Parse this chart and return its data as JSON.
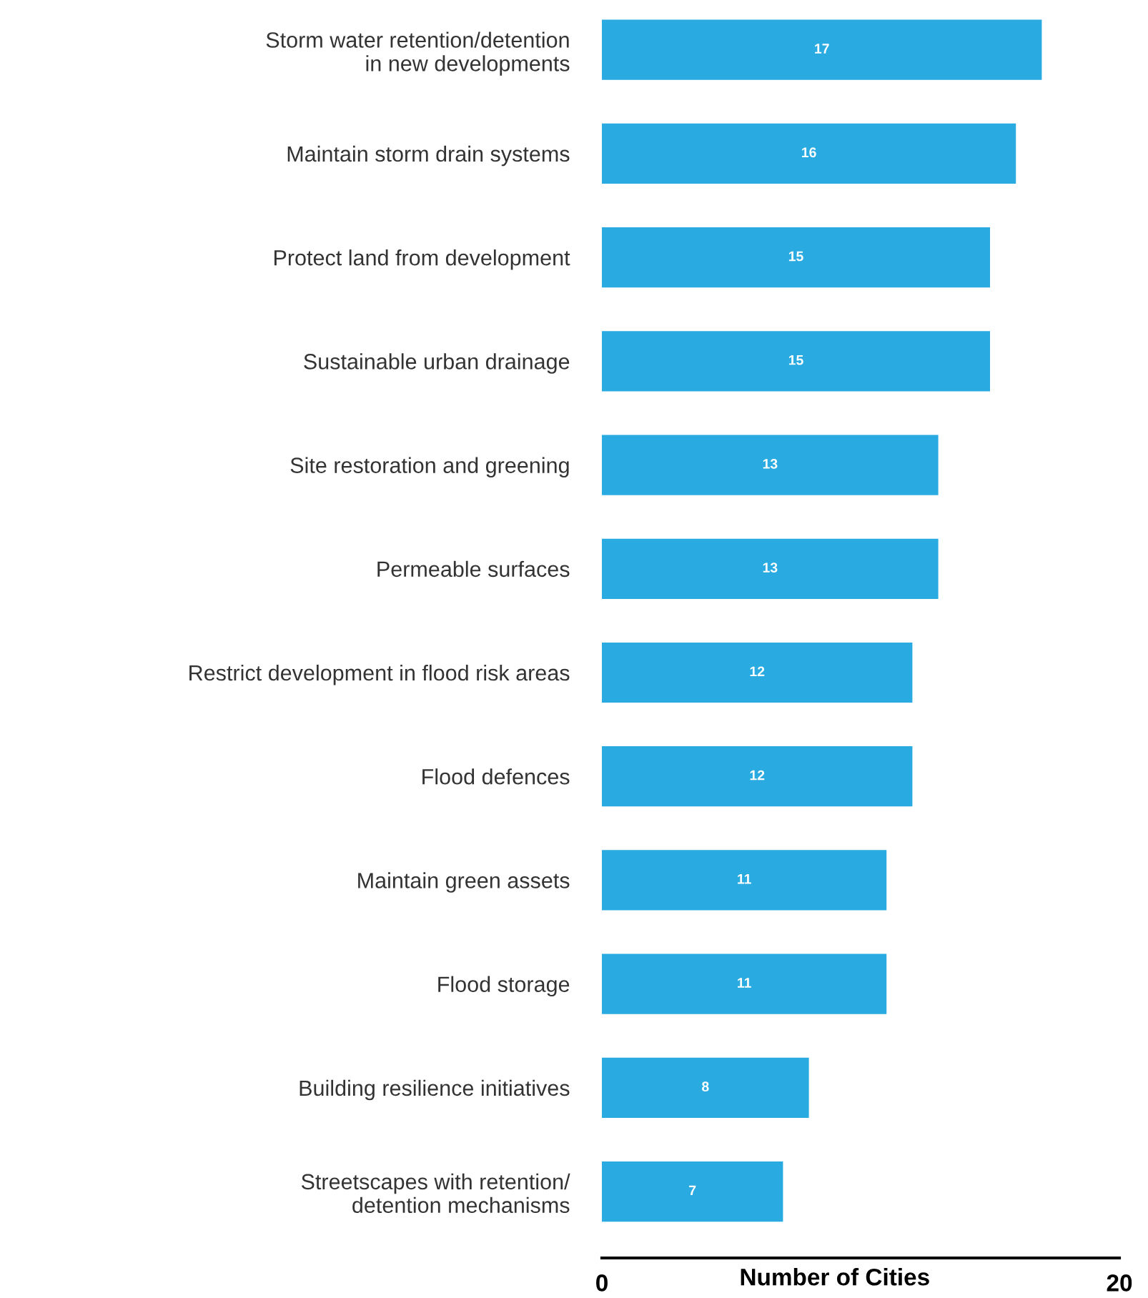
{
  "chart_data": {
    "type": "bar",
    "orientation": "horizontal",
    "xlabel": "Number of Cities",
    "categories": [
      "Storm water retention/detention\nin new developments",
      "Maintain storm drain systems",
      "Protect land from development",
      "Sustainable urban drainage",
      "Site restoration and greening",
      "Permeable surfaces",
      "Restrict development in flood risk areas",
      "Flood defences",
      "Maintain green assets",
      "Flood storage",
      "Building resilience initiatives",
      "Streetscapes with retention/\ndetention mechanisms"
    ],
    "values": [
      17,
      16,
      15,
      15,
      13,
      13,
      12,
      12,
      11,
      11,
      8,
      7
    ],
    "color": "#29abe2",
    "xlim": [
      0,
      20
    ],
    "xticks": [
      0,
      20
    ],
    "data_labels": true,
    "grid": false
  }
}
